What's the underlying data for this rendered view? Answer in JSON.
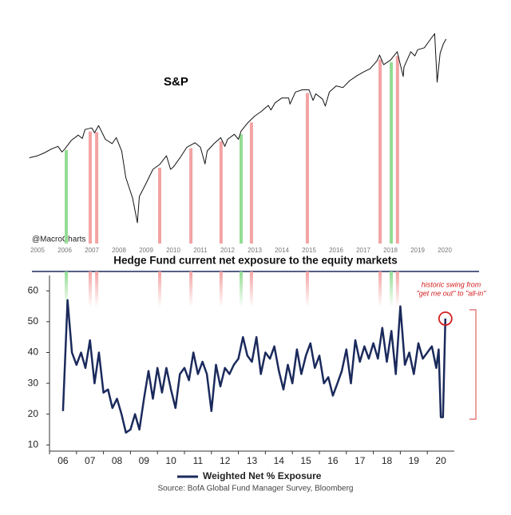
{
  "chart_data": [
    {
      "type": "line",
      "title": "S&P",
      "credit": "@MacroCharts",
      "color": "#111111",
      "log_scale": true,
      "xlim": [
        2005,
        2021
      ],
      "ylim": [
        590,
        3670
      ],
      "xticks": [
        2005,
        2006,
        2007,
        2008,
        2009,
        2010,
        2011,
        2012,
        2013,
        2014,
        2015,
        2016,
        2017,
        2018,
        2019,
        2020
      ],
      "x": [
        2005.2,
        2005.5,
        2005.75,
        2006.0,
        2006.25,
        2006.4,
        2006.5,
        2006.75,
        2007.0,
        2007.15,
        2007.25,
        2007.5,
        2007.6,
        2007.75,
        2008.0,
        2008.25,
        2008.4,
        2008.6,
        2008.75,
        2008.9,
        2009.0,
        2009.18,
        2009.25,
        2009.5,
        2009.75,
        2010.0,
        2010.25,
        2010.4,
        2010.5,
        2010.75,
        2011.0,
        2011.3,
        2011.5,
        2011.67,
        2011.75,
        2012.0,
        2012.25,
        2012.4,
        2012.5,
        2012.75,
        2012.9,
        2013.0,
        2013.25,
        2013.5,
        2013.75,
        2014.0,
        2014.1,
        2014.25,
        2014.5,
        2014.75,
        2014.8,
        2015.0,
        2015.25,
        2015.5,
        2015.65,
        2015.75,
        2016.0,
        2016.1,
        2016.25,
        2016.5,
        2016.75,
        2017.0,
        2017.25,
        2017.5,
        2017.75,
        2018.0,
        2018.1,
        2018.25,
        2018.5,
        2018.75,
        2018.97,
        2019.0,
        2019.25,
        2019.4,
        2019.5,
        2019.75,
        2020.0,
        2020.13,
        2020.22,
        2020.33,
        2020.45,
        2020.55
      ],
      "values": [
        1180,
        1200,
        1230,
        1270,
        1300,
        1240,
        1270,
        1370,
        1430,
        1390,
        1500,
        1520,
        1460,
        1550,
        1380,
        1330,
        1400,
        1250,
        1000,
        900,
        840,
        680,
        850,
        950,
        1070,
        1115,
        1200,
        1070,
        1090,
        1180,
        1290,
        1340,
        1290,
        1120,
        1250,
        1330,
        1400,
        1300,
        1380,
        1440,
        1380,
        1480,
        1590,
        1680,
        1750,
        1840,
        1770,
        1880,
        1960,
        1960,
        1860,
        2060,
        2100,
        2100,
        1920,
        2030,
        1940,
        1830,
        2060,
        2170,
        2140,
        2270,
        2360,
        2440,
        2510,
        2680,
        2820,
        2600,
        2700,
        2900,
        2350,
        2550,
        2900,
        2800,
        2950,
        3000,
        3250,
        3380,
        2240,
        2860,
        3100,
        3230
      ],
      "highlights": [
        {
          "x": 2006.56,
          "color": "#93dc93"
        },
        {
          "x": 2007.44,
          "color": "#f3a3a3"
        },
        {
          "x": 2007.68,
          "color": "#f3a3a3"
        },
        {
          "x": 2010.0,
          "color": "#f3a3a3"
        },
        {
          "x": 2011.15,
          "color": "#f3a3a3"
        },
        {
          "x": 2012.26,
          "color": "#f3a3a3"
        },
        {
          "x": 2013.0,
          "color": "#93dc93"
        },
        {
          "x": 2013.38,
          "color": "#f3a3a3"
        },
        {
          "x": 2015.44,
          "color": "#f3a3a3"
        },
        {
          "x": 2018.12,
          "color": "#f3a3a3"
        },
        {
          "x": 2018.53,
          "color": "#93dc93"
        },
        {
          "x": 2018.76,
          "color": "#f3a3a3"
        }
      ]
    },
    {
      "type": "line",
      "title": "Hedge Fund current net exposure to the equity markets",
      "xlim": [
        2006,
        2021
      ],
      "ylim": [
        8,
        65
      ],
      "yticks": [
        10,
        20,
        30,
        40,
        50,
        60
      ],
      "xticks": [
        {
          "value": 2006,
          "label": "06"
        },
        {
          "value": 2007,
          "label": "07"
        },
        {
          "value": 2008,
          "label": "08"
        },
        {
          "value": 2009,
          "label": "09"
        },
        {
          "value": 2010,
          "label": "10"
        },
        {
          "value": 2011,
          "label": "11"
        },
        {
          "value": 2012,
          "label": "12"
        },
        {
          "value": 2013,
          "label": "13"
        },
        {
          "value": 2014,
          "label": "14"
        },
        {
          "value": 2015,
          "label": "15"
        },
        {
          "value": 2016,
          "label": "16"
        },
        {
          "value": 2017,
          "label": "17"
        },
        {
          "value": 2018,
          "label": "18"
        },
        {
          "value": 2019,
          "label": "19"
        },
        {
          "value": 2020,
          "label": "20"
        }
      ],
      "x": [
        2006.5,
        2006.67,
        2006.83,
        2007.0,
        2007.17,
        2007.33,
        2007.5,
        2007.67,
        2007.83,
        2008.0,
        2008.17,
        2008.33,
        2008.5,
        2008.67,
        2008.83,
        2009.0,
        2009.17,
        2009.33,
        2009.5,
        2009.67,
        2009.83,
        2010.0,
        2010.17,
        2010.33,
        2010.5,
        2010.67,
        2010.83,
        2011.0,
        2011.17,
        2011.33,
        2011.5,
        2011.67,
        2011.83,
        2012.0,
        2012.17,
        2012.33,
        2012.5,
        2012.67,
        2012.83,
        2013.0,
        2013.17,
        2013.33,
        2013.5,
        2013.67,
        2013.83,
        2014.0,
        2014.17,
        2014.33,
        2014.5,
        2014.67,
        2014.83,
        2015.0,
        2015.17,
        2015.33,
        2015.5,
        2015.67,
        2015.83,
        2016.0,
        2016.17,
        2016.33,
        2016.5,
        2016.67,
        2016.83,
        2017.0,
        2017.17,
        2017.33,
        2017.5,
        2017.67,
        2017.83,
        2018.0,
        2018.17,
        2018.33,
        2018.5,
        2018.67,
        2018.83,
        2019.0,
        2019.17,
        2019.33,
        2019.5,
        2019.67,
        2019.83,
        2020.0,
        2020.17,
        2020.33,
        2020.42,
        2020.5,
        2020.58,
        2020.67
      ],
      "series": [
        {
          "name": "Weighted Net % Exposure",
          "color": "#1b2a5c",
          "values": [
            21,
            57,
            40,
            36,
            40,
            35,
            44,
            30,
            40,
            27,
            28,
            22,
            25,
            20,
            14,
            15,
            20,
            15,
            25,
            34,
            25,
            35,
            27,
            35,
            28,
            22,
            33,
            35,
            31,
            40,
            33,
            37,
            33,
            21,
            36,
            29,
            35,
            33,
            36,
            38,
            45,
            39,
            37,
            45,
            33,
            40,
            38,
            42,
            34,
            28,
            36,
            30,
            41,
            33,
            39,
            43,
            35,
            39,
            30,
            32,
            26,
            30,
            34,
            41,
            30,
            44,
            37,
            42,
            38,
            43,
            38,
            48,
            37,
            47,
            33,
            55,
            36,
            40,
            33,
            43,
            38,
            40,
            42,
            35,
            41,
            19,
            19,
            51
          ]
        }
      ],
      "annotation": [
        "historic swing from",
        "\"get me out\" to \"all-in\""
      ],
      "source": "Source: BofA Global Fund Manager Survey, Bloomberg"
    }
  ]
}
